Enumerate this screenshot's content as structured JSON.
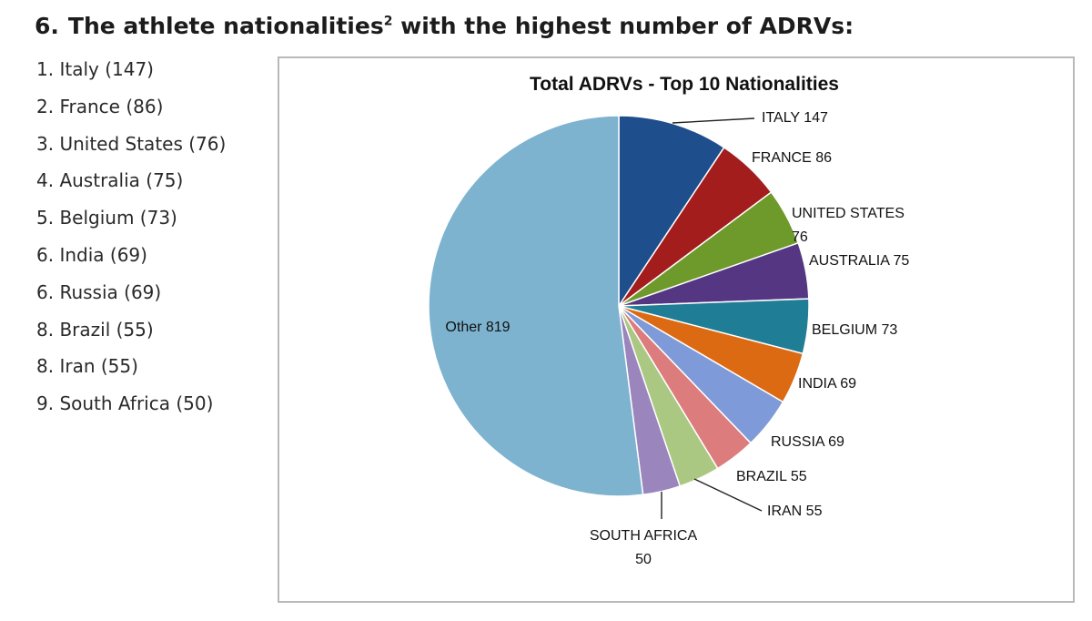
{
  "heading": {
    "number": "6.",
    "text": "The athlete nationalities",
    "footnote": "2",
    "suffix": "with the highest number of ADRVs:"
  },
  "ranking": [
    {
      "rank": "1.",
      "text": "Italy (147)"
    },
    {
      "rank": "2.",
      "text": "France (86)"
    },
    {
      "rank": "3.",
      "text": "United States (76)"
    },
    {
      "rank": "4.",
      "text": "Australia (75)"
    },
    {
      "rank": "5.",
      "text": "Belgium (73)"
    },
    {
      "rank": "6.",
      "text": "India (69)"
    },
    {
      "rank": "6.",
      "text": "Russia (69)"
    },
    {
      "rank": "8.",
      "text": "Brazil (55)"
    },
    {
      "rank": "8.",
      "text": "Iran (55)"
    },
    {
      "rank": "9.",
      "text": "South Africa (50)"
    }
  ],
  "chart_data": {
    "type": "pie",
    "title": "Total ADRVs - Top 10 Nationalities",
    "slices": [
      {
        "label": "ITALY",
        "value": 147,
        "color": "#1e4e8c",
        "lines": [
          "ITALY 147"
        ]
      },
      {
        "label": "FRANCE",
        "value": 86,
        "color": "#a31d1d",
        "lines": [
          "FRANCE 86"
        ]
      },
      {
        "label": "UNITED STATES",
        "value": 76,
        "color": "#6d9a2a",
        "lines": [
          "UNITED STATES",
          "76"
        ]
      },
      {
        "label": "AUSTRALIA",
        "value": 75,
        "color": "#553683",
        "lines": [
          "AUSTRALIA 75"
        ]
      },
      {
        "label": "BELGIUM",
        "value": 73,
        "color": "#1f7d96",
        "lines": [
          "BELGIUM 73"
        ]
      },
      {
        "label": "INDIA",
        "value": 69,
        "color": "#dc6a12",
        "lines": [
          "INDIA 69"
        ]
      },
      {
        "label": "RUSSIA",
        "value": 69,
        "color": "#7f9ad8",
        "lines": [
          "RUSSIA 69"
        ]
      },
      {
        "label": "BRAZIL",
        "value": 55,
        "color": "#dd7c7c",
        "lines": [
          "BRAZIL 55"
        ]
      },
      {
        "label": "IRAN",
        "value": 55,
        "color": "#abc883",
        "lines": [
          "IRAN 55"
        ]
      },
      {
        "label": "SOUTH AFRICA",
        "value": 50,
        "color": "#9a85bd",
        "lines": [
          "SOUTH AFRICA",
          "50"
        ]
      },
      {
        "label": "Other",
        "value": 819,
        "color": "#7db3cf",
        "lines": [
          "Other 819"
        ]
      }
    ],
    "legend": "none"
  }
}
